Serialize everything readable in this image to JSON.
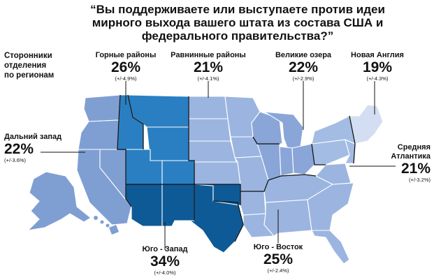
{
  "title": {
    "line1": "“Вы поддерживаете или выступаете против идеи",
    "line2": "мирного выхода вашего штата из состава США и",
    "line3": "федерального правительства?”"
  },
  "legend": {
    "line1": "Сторонники",
    "line2": "отделения",
    "line3": "по регионам"
  },
  "regions": [
    {
      "id": "far-west",
      "name": "Дальний запад",
      "percent": "22%",
      "margin": "(+/-3.6%)",
      "value": 22,
      "color": "#7f9fd3"
    },
    {
      "id": "mountain",
      "name": "Горные районы",
      "percent": "26%",
      "margin": "(+/-4.9%)",
      "value": 26,
      "color": "#2a7fc2"
    },
    {
      "id": "plains",
      "name": "Равнинные районы",
      "percent": "21%",
      "margin": "(+/-4.1%)",
      "value": 21,
      "color": "#9bb5e0"
    },
    {
      "id": "great-lakes",
      "name": "Великие озера",
      "percent": "22%",
      "margin": "(+/-2.9%)",
      "value": 22,
      "color": "#8aa6d8"
    },
    {
      "id": "new-england",
      "name": "Новая Англия",
      "percent": "19%",
      "margin": "(+/-4.3%)",
      "value": 19,
      "color": "#d4def2"
    },
    {
      "id": "mid-atlantic",
      "name_line1": "Средняя",
      "name_line2": "Атлантика",
      "percent": "21%",
      "margin": "(+/-3.2%)",
      "value": 21,
      "color": "#a3bce3"
    },
    {
      "id": "southwest",
      "name": "Юго - Запад",
      "percent": "34%",
      "margin": "(+/-4.0%)",
      "value": 34,
      "color": "#0e5a96"
    },
    {
      "id": "southeast",
      "name": "Юго - Восток",
      "percent": "25%",
      "margin": "(+/-2.4%)",
      "value": 25,
      "color": "#9bb5e0"
    }
  ]
}
